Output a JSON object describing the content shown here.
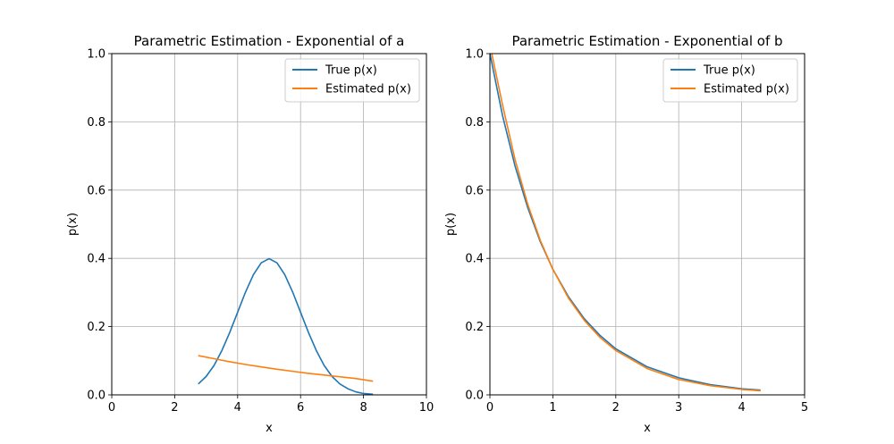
{
  "chart_data": [
    {
      "type": "line",
      "title": "Parametric Estimation - Exponential of a",
      "xlabel": "x",
      "ylabel": "p(x)",
      "xlim": [
        0,
        10
      ],
      "ylim": [
        0,
        1.0
      ],
      "xticks": [
        0,
        2,
        4,
        6,
        8,
        10
      ],
      "xtick_labels": [
        "0",
        "2",
        "4",
        "6",
        "8",
        "10"
      ],
      "yticks": [
        0,
        0.2,
        0.4,
        0.6,
        0.8,
        1.0
      ],
      "ytick_labels": [
        "0.0",
        "0.2",
        "0.4",
        "0.6",
        "0.8",
        "1.0"
      ],
      "grid": true,
      "legend_position": "top-right",
      "series": [
        {
          "name": "True p(x)",
          "color": "#1f77b4",
          "x": [
            2.75,
            3.0,
            3.25,
            3.5,
            3.75,
            4.0,
            4.25,
            4.5,
            4.75,
            5.0,
            5.25,
            5.5,
            5.75,
            6.0,
            6.25,
            6.5,
            6.75,
            7.0,
            7.25,
            7.5,
            7.75,
            8.0,
            8.3
          ],
          "y": [
            0.032,
            0.054,
            0.086,
            0.13,
            0.183,
            0.242,
            0.301,
            0.352,
            0.387,
            0.399,
            0.387,
            0.352,
            0.301,
            0.242,
            0.183,
            0.13,
            0.086,
            0.054,
            0.032,
            0.018,
            0.009,
            0.004,
            0.002
          ]
        },
        {
          "name": "Estimated p(x)",
          "color": "#ff7f0e",
          "x": [
            2.75,
            3.25,
            3.75,
            4.25,
            4.75,
            5.25,
            5.75,
            6.25,
            6.75,
            7.25,
            7.75,
            8.3
          ],
          "y": [
            0.115,
            0.106,
            0.097,
            0.089,
            0.082,
            0.075,
            0.069,
            0.063,
            0.058,
            0.053,
            0.048,
            0.04
          ]
        }
      ]
    },
    {
      "type": "line",
      "title": "Parametric Estimation - Exponential of b",
      "xlabel": "x",
      "ylabel": "p(x)",
      "xlim": [
        0,
        5
      ],
      "ylim": [
        0,
        1.0
      ],
      "xticks": [
        0,
        1,
        2,
        3,
        4,
        5
      ],
      "xtick_labels": [
        "0",
        "1",
        "2",
        "3",
        "4",
        "5"
      ],
      "yticks": [
        0,
        0.2,
        0.4,
        0.6,
        0.8,
        1.0
      ],
      "ytick_labels": [
        "0.0",
        "0.2",
        "0.4",
        "0.6",
        "0.8",
        "1.0"
      ],
      "grid": true,
      "legend_position": "top-right",
      "series": [
        {
          "name": "True p(x)",
          "color": "#1f77b4",
          "x": [
            0.0,
            0.2,
            0.4,
            0.6,
            0.8,
            1.0,
            1.25,
            1.5,
            1.75,
            2.0,
            2.5,
            3.0,
            3.5,
            4.0,
            4.3
          ],
          "y": [
            1.0,
            0.819,
            0.67,
            0.549,
            0.449,
            0.368,
            0.287,
            0.223,
            0.174,
            0.135,
            0.082,
            0.05,
            0.03,
            0.018,
            0.014
          ]
        },
        {
          "name": "Estimated p(x)",
          "color": "#ff7f0e",
          "x": [
            0.03,
            0.2,
            0.4,
            0.6,
            0.8,
            1.0,
            1.25,
            1.5,
            1.75,
            2.0,
            2.5,
            3.0,
            3.5,
            4.0,
            4.3
          ],
          "y": [
            1.0,
            0.85,
            0.689,
            0.559,
            0.453,
            0.368,
            0.283,
            0.218,
            0.168,
            0.13,
            0.077,
            0.045,
            0.027,
            0.016,
            0.012
          ]
        }
      ]
    }
  ]
}
